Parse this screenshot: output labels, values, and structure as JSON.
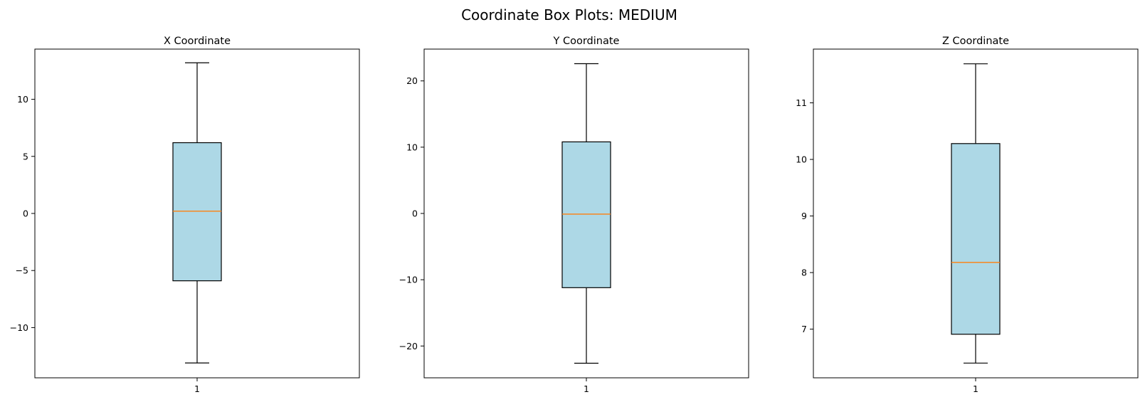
{
  "figure": {
    "title": "Coordinate Box Plots: MEDIUM"
  },
  "colors": {
    "box_fill": "#add8e6",
    "median": "#ff7f0e",
    "stroke": "#000000"
  },
  "chart_data": [
    {
      "type": "box",
      "title": "X Coordinate",
      "xlabel": "",
      "ylabel": "",
      "categories": [
        "1"
      ],
      "ylim": [
        -14.4,
        14.4
      ],
      "yticks": [
        -10,
        -5,
        0,
        5,
        10
      ],
      "ytick_labels": [
        "−10",
        "−5",
        "0",
        "5",
        "10"
      ],
      "grid": false,
      "boxes": [
        {
          "whisker_low": -13.1,
          "q1": -5.9,
          "median": 0.2,
          "q3": 6.2,
          "whisker_high": 13.2
        }
      ]
    },
    {
      "type": "box",
      "title": "Y Coordinate",
      "xlabel": "",
      "ylabel": "",
      "categories": [
        "1"
      ],
      "ylim": [
        -24.8,
        24.8
      ],
      "yticks": [
        -20,
        -10,
        0,
        10,
        20
      ],
      "ytick_labels": [
        "−20",
        "−10",
        "0",
        "10",
        "20"
      ],
      "grid": false,
      "boxes": [
        {
          "whisker_low": -22.6,
          "q1": -11.2,
          "median": -0.1,
          "q3": 10.8,
          "whisker_high": 22.6
        }
      ]
    },
    {
      "type": "box",
      "title": "Z Coordinate",
      "xlabel": "",
      "ylabel": "",
      "categories": [
        "1"
      ],
      "ylim": [
        6.14,
        11.95
      ],
      "yticks": [
        7,
        8,
        9,
        10,
        11
      ],
      "ytick_labels": [
        "7",
        "8",
        "9",
        "10",
        "11"
      ],
      "grid": false,
      "boxes": [
        {
          "whisker_low": 6.4,
          "q1": 6.91,
          "median": 8.18,
          "q3": 10.28,
          "whisker_high": 11.69
        }
      ]
    }
  ]
}
